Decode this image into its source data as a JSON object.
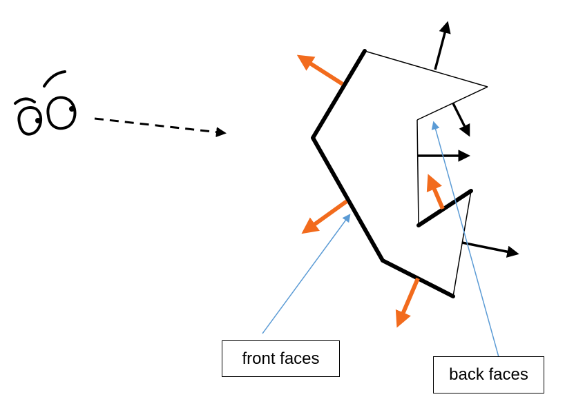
{
  "labels": {
    "front": "front faces",
    "back": "back faces"
  },
  "colors": {
    "front_normal": "#F26B1D",
    "back_normal": "#000000",
    "callout_line": "#5B9BD5",
    "outline": "#000000"
  },
  "icons": {
    "viewer": "eyes-icon"
  }
}
